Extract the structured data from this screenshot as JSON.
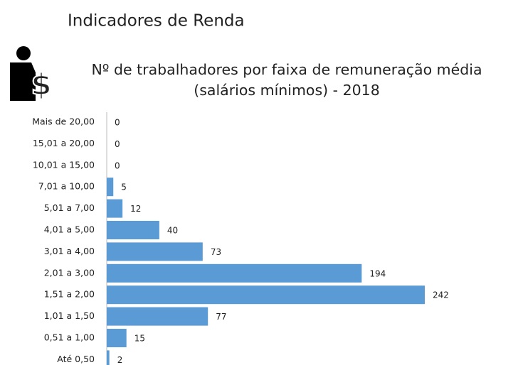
{
  "header": {
    "title": "Indicadores de Renda"
  },
  "chart_data": {
    "type": "bar",
    "orientation": "horizontal",
    "title": [
      "Nº de trabalhadores por faixa de remuneração média",
      "(salários mínimos) - 2018"
    ],
    "categories": [
      "Mais de 20,00",
      "15,01 a 20,00",
      "10,01 a 15,00",
      "7,01 a 10,00",
      "5,01 a 7,00",
      "4,01 a 5,00",
      "3,01 a 4,00",
      "2,01 a 3,00",
      "1,51 a 2,00",
      "1,01 a 1,50",
      "0,51 a 1,00",
      "Até 0,50"
    ],
    "values": [
      0,
      0,
      0,
      5,
      12,
      40,
      73,
      194,
      242,
      77,
      15,
      2
    ],
    "color": "#5b9bd5"
  }
}
